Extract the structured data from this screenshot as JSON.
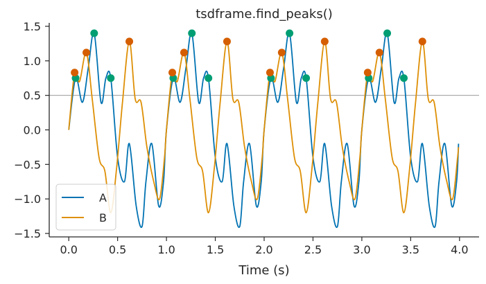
{
  "chart_data": {
    "type": "line",
    "title": "tsdframe.find_peaks()",
    "xlabel": "Time (s)",
    "ylabel": "",
    "xlim": [
      -0.2,
      4.2
    ],
    "ylim": [
      -1.55,
      1.55
    ],
    "x_ticks": [
      0.0,
      0.5,
      1.0,
      1.5,
      2.0,
      2.5,
      3.0,
      3.5,
      4.0
    ],
    "x_tick_labels": [
      "0.0",
      "0.5",
      "1.0",
      "1.5",
      "2.0",
      "2.5",
      "3.0",
      "3.5",
      "4.0"
    ],
    "y_ticks": [
      -1.5,
      -1.0,
      -0.5,
      0.0,
      0.5,
      1.0,
      1.5
    ],
    "y_tick_labels": [
      "−1.5",
      "−1.0",
      "−0.5",
      "0.0",
      "0.5",
      "1.0",
      "1.5"
    ],
    "threshold": 0.5,
    "grid": false,
    "legend_position": "lower-left",
    "series": [
      {
        "name": "A",
        "color": "#0072b2",
        "x": [
          0.0,
          0.07,
          0.14,
          0.2,
          0.26,
          0.33,
          0.38,
          0.43,
          0.5,
          0.57,
          0.62,
          0.69,
          0.75,
          0.79,
          0.85,
          0.92,
          0.97,
          1.0,
          1.07,
          1.14,
          1.2,
          1.26,
          1.33,
          1.38,
          1.43,
          1.5,
          1.57,
          1.62,
          1.69,
          1.75,
          1.79,
          1.85,
          1.92,
          1.97,
          2.0,
          2.07,
          2.14,
          2.2,
          2.26,
          2.33,
          2.38,
          2.43,
          2.5,
          2.57,
          2.62,
          2.69,
          2.75,
          2.79,
          2.85,
          2.92,
          2.97,
          3.0,
          3.07,
          3.14,
          3.2,
          3.26,
          3.33,
          3.38,
          3.43,
          3.5,
          3.57,
          3.62,
          3.69,
          3.75,
          3.79,
          3.85,
          3.92,
          3.97,
          3.99
        ],
        "y": [
          0.0,
          0.75,
          0.4,
          0.9,
          1.4,
          0.4,
          0.75,
          0.75,
          -0.4,
          -0.75,
          -0.2,
          -1.1,
          -1.4,
          -0.75,
          -0.2,
          -1.1,
          -0.75,
          0.0,
          0.75,
          0.4,
          0.9,
          1.4,
          0.4,
          0.75,
          0.75,
          -0.4,
          -0.75,
          -0.2,
          -1.1,
          -1.4,
          -0.75,
          -0.2,
          -1.1,
          -0.75,
          0.0,
          0.75,
          0.4,
          0.9,
          1.4,
          0.4,
          0.75,
          0.75,
          -0.4,
          -0.75,
          -0.2,
          -1.1,
          -1.4,
          -0.75,
          -0.2,
          -1.1,
          -0.75,
          0.0,
          0.75,
          0.4,
          0.9,
          1.4,
          0.4,
          0.75,
          0.75,
          -0.4,
          -0.75,
          -0.2,
          -1.1,
          -1.4,
          -0.75,
          -0.2,
          -1.1,
          -0.75,
          -0.2
        ],
        "peaks_x": [
          0.07,
          0.26,
          0.43,
          1.07,
          1.26,
          1.43,
          2.07,
          2.26,
          2.43,
          3.07,
          3.26,
          3.43
        ],
        "peaks_y": [
          0.75,
          1.4,
          0.75,
          0.75,
          1.4,
          0.75,
          0.75,
          1.4,
          0.75,
          0.75,
          1.4,
          0.75
        ]
      },
      {
        "name": "B",
        "color": "#de8f05",
        "x": [
          0.0,
          0.06,
          0.11,
          0.18,
          0.24,
          0.31,
          0.37,
          0.43,
          0.49,
          0.55,
          0.62,
          0.68,
          0.74,
          0.8,
          0.87,
          0.93,
          0.98,
          1.0,
          1.06,
          1.11,
          1.18,
          1.24,
          1.31,
          1.37,
          1.43,
          1.49,
          1.55,
          1.62,
          1.68,
          1.74,
          1.8,
          1.87,
          1.93,
          1.98,
          2.0,
          2.06,
          2.11,
          2.18,
          2.24,
          2.31,
          2.37,
          2.43,
          2.49,
          2.55,
          2.62,
          2.68,
          2.74,
          2.8,
          2.87,
          2.93,
          2.98,
          3.0,
          3.06,
          3.11,
          3.18,
          3.24,
          3.31,
          3.37,
          3.43,
          3.49,
          3.55,
          3.62,
          3.68,
          3.74,
          3.8,
          3.87,
          3.93,
          3.98,
          3.99
        ],
        "y": [
          0.0,
          0.83,
          0.7,
          1.12,
          0.45,
          -0.4,
          -0.6,
          -1.2,
          -0.55,
          0.4,
          1.28,
          0.45,
          0.4,
          -0.25,
          -0.75,
          -1.0,
          -0.4,
          0.0,
          0.83,
          0.7,
          1.12,
          0.45,
          -0.4,
          -0.6,
          -1.2,
          -0.55,
          0.4,
          1.28,
          0.45,
          0.4,
          -0.25,
          -0.75,
          -1.0,
          -0.4,
          0.0,
          0.83,
          0.7,
          1.12,
          0.45,
          -0.4,
          -0.6,
          -1.2,
          -0.55,
          0.4,
          1.28,
          0.45,
          0.4,
          -0.25,
          -0.75,
          -1.0,
          -0.4,
          0.0,
          0.83,
          0.7,
          1.12,
          0.45,
          -0.4,
          -0.6,
          -1.2,
          -0.55,
          0.4,
          1.28,
          0.45,
          0.4,
          -0.25,
          -0.75,
          -1.0,
          -0.4,
          -0.25
        ],
        "peaks_x": [
          0.06,
          0.18,
          0.62,
          1.06,
          1.18,
          1.62,
          2.06,
          2.18,
          2.62,
          3.06,
          3.18,
          3.62
        ],
        "peaks_y": [
          0.83,
          1.12,
          1.28,
          0.83,
          1.12,
          1.28,
          0.83,
          1.12,
          1.28,
          0.83,
          1.12,
          1.28
        ],
        "peak_color": "#d55e00"
      }
    ],
    "peak_color_A": "#029e73"
  }
}
